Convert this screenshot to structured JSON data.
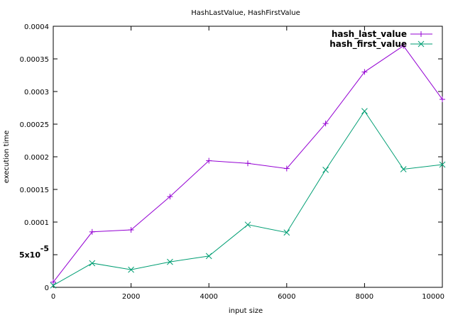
{
  "chart_data": {
    "type": "line",
    "title": "HashLastValue, HashFirstValue",
    "xlabel": "input size",
    "ylabel": "execution time",
    "xlim": [
      0,
      10000
    ],
    "ylim": [
      0,
      0.0004
    ],
    "x_ticks": [
      0,
      2000,
      4000,
      6000,
      8000,
      10000
    ],
    "x_tick_labels": [
      "0",
      "2000",
      "4000",
      "6000",
      "8000",
      "10000"
    ],
    "y_ticks": [
      0,
      5e-05,
      0.0001,
      0.00015,
      0.0002,
      0.00025,
      0.0003,
      0.00035,
      0.0004
    ],
    "y_tick_labels": [
      "0",
      "5x10",
      "0.0001",
      "0.00015",
      "0.0002",
      "0.00025",
      "0.0003",
      "0.00035",
      "0.0004"
    ],
    "y_tick_exponent": "-5",
    "grid": false,
    "legend_placement": "top-right",
    "x": [
      0,
      1000,
      2000,
      3000,
      4000,
      5000,
      6000,
      7000,
      8000,
      9000,
      10000
    ],
    "series": [
      {
        "name": "hash_last_value",
        "color": "#9400D3",
        "marker": "plus",
        "values": [
          8e-06,
          8.5e-05,
          8.8e-05,
          0.000139,
          0.000194,
          0.00019,
          0.000182,
          0.000251,
          0.00033,
          0.00037,
          0.000288
        ]
      },
      {
        "name": "hash_first_value",
        "color": "#009E73",
        "marker": "cross",
        "values": [
          3e-06,
          3.7e-05,
          2.7e-05,
          3.9e-05,
          4.8e-05,
          9.6e-05,
          8.4e-05,
          0.00018,
          0.00027,
          0.000181,
          0.000188
        ]
      }
    ]
  }
}
